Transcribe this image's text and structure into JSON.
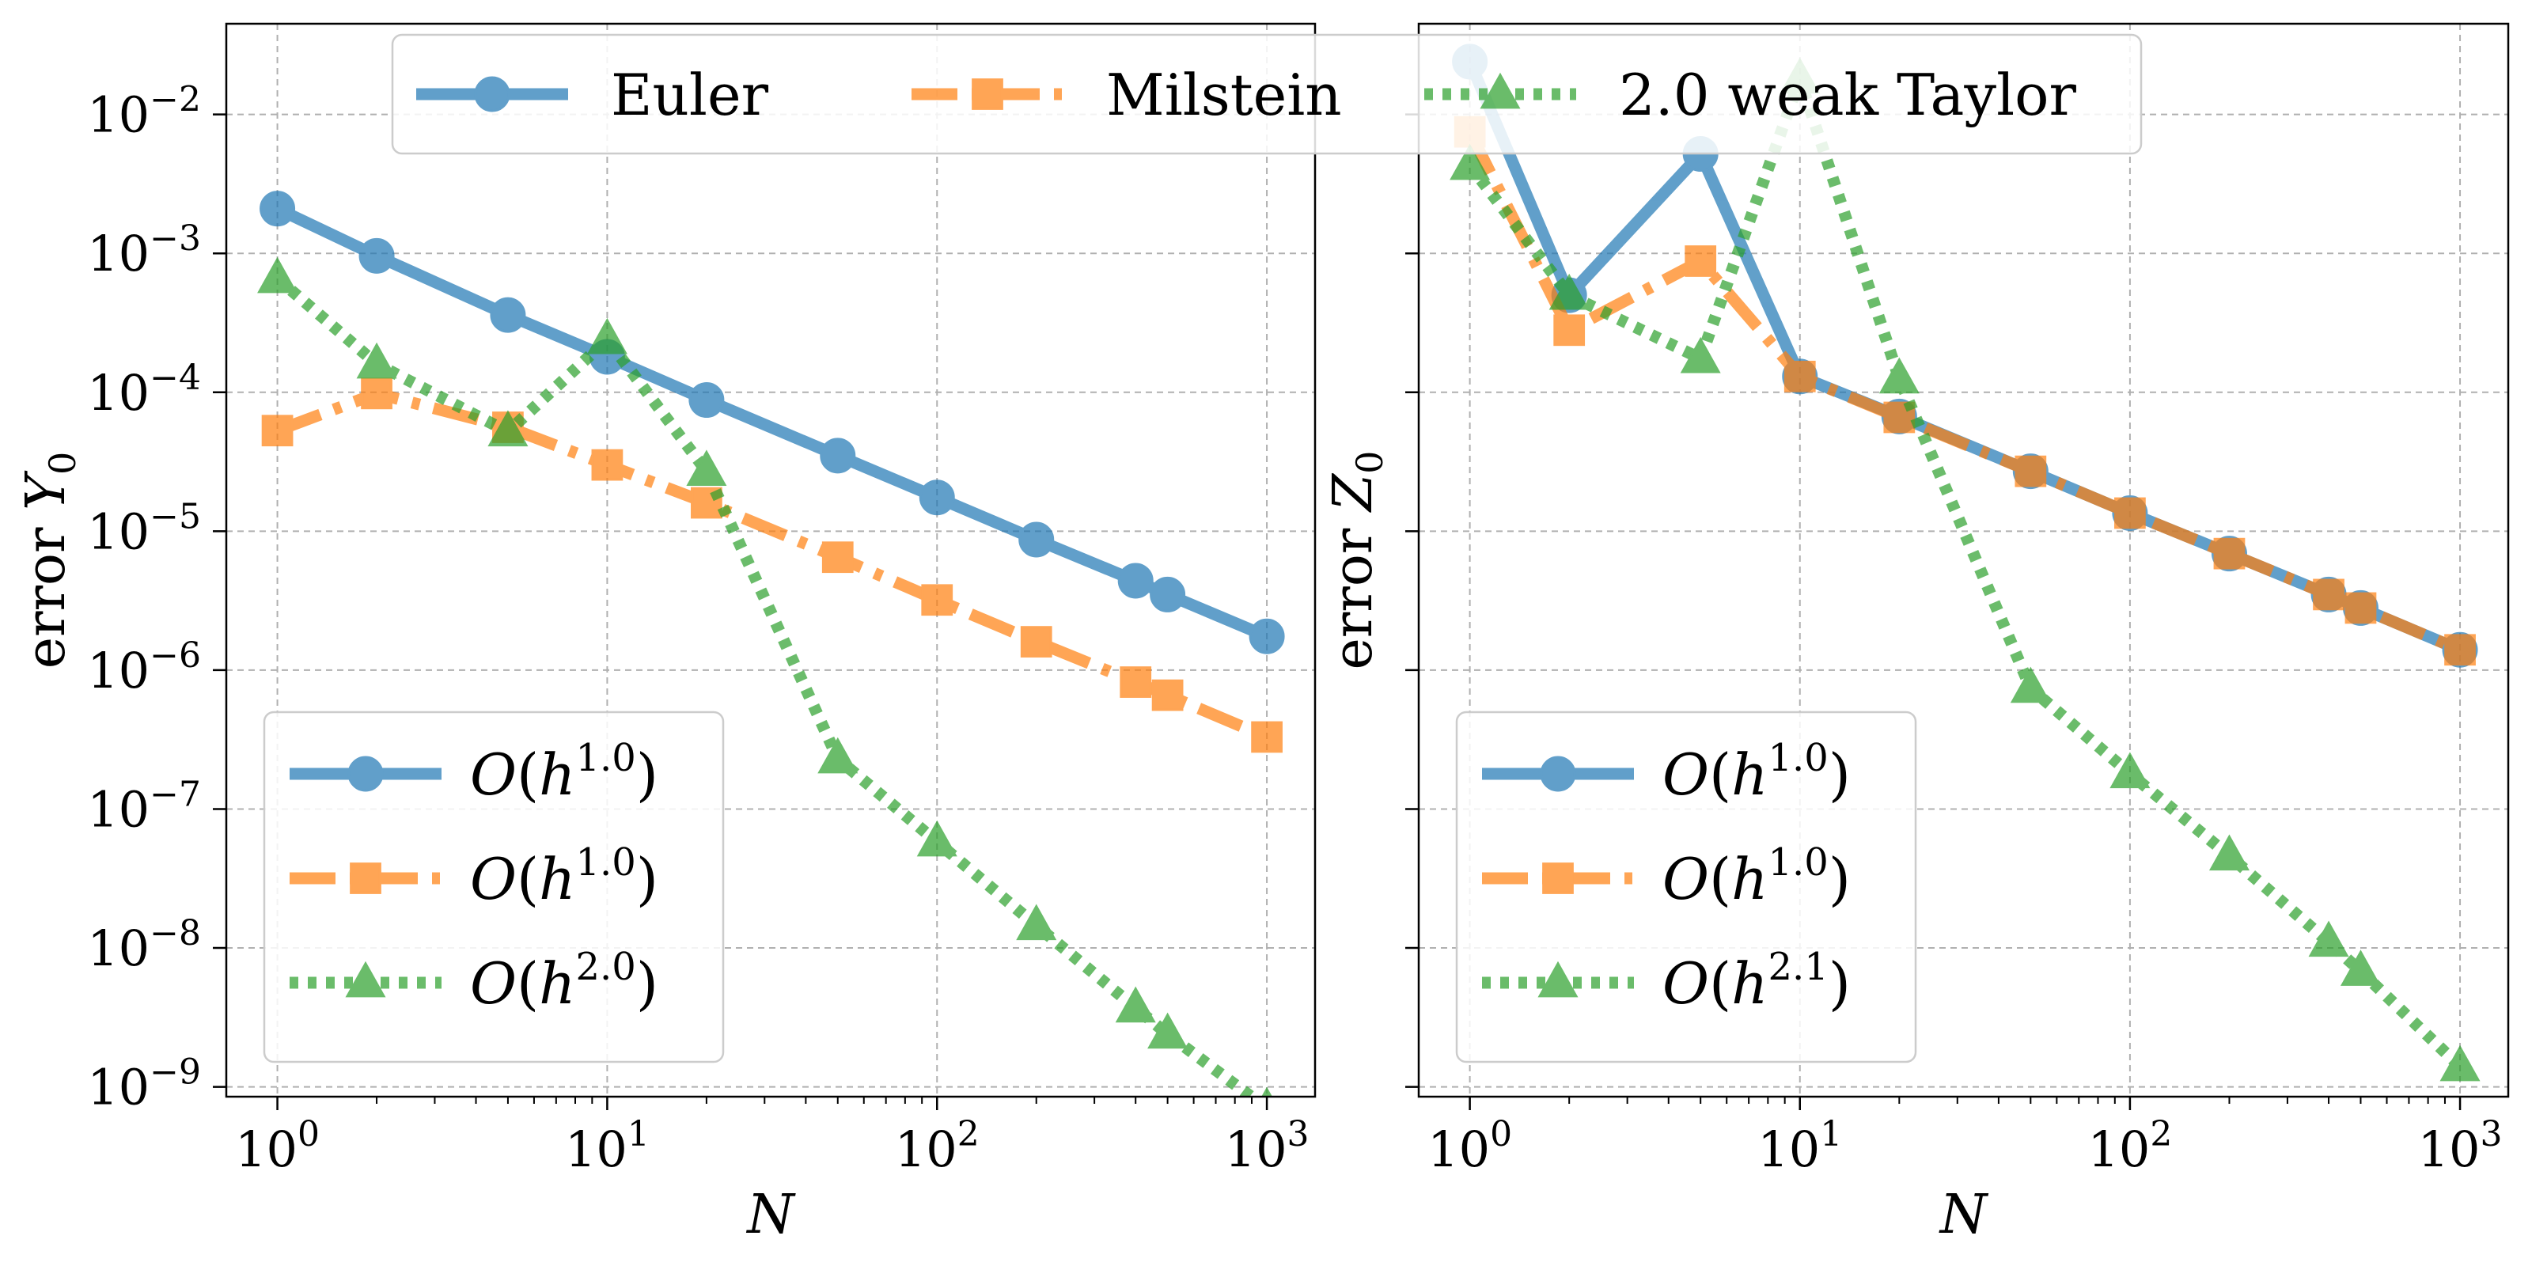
{
  "chart_data": {
    "type": "line",
    "scale": "log-log",
    "top_legend": {
      "entries": [
        {
          "label": "Euler",
          "series": "euler"
        },
        {
          "label": "Milstein",
          "series": "milstein"
        },
        {
          "label": "2.0 weak Taylor",
          "series": "taylor"
        }
      ]
    },
    "styles": {
      "euler": {
        "color": "#1f77b4",
        "marker": "circle",
        "dash": "solid"
      },
      "milstein": {
        "color": "#ff7f0e",
        "marker": "square",
        "dash": "dashdot"
      },
      "taylor": {
        "color": "#2ca02c",
        "marker": "triangle",
        "dash": "dotted"
      }
    },
    "panels": [
      {
        "id": "left",
        "xlabel": "N",
        "ylabel_prefix": "error",
        "ylabel_symbol": "Y",
        "ylabel_sub": "0",
        "xlim": [
          0.7,
          1400
        ],
        "ylim": [
          8.5e-10,
          0.045
        ],
        "xticks": [
          {
            "value": 1,
            "exp": "0"
          },
          {
            "value": 10,
            "exp": "1"
          },
          {
            "value": 100,
            "exp": "2"
          },
          {
            "value": 1000,
            "exp": "3"
          }
        ],
        "yticks": [
          {
            "value": 1e-09,
            "exp": "−9"
          },
          {
            "value": 1e-08,
            "exp": "−8"
          },
          {
            "value": 1e-07,
            "exp": "−7"
          },
          {
            "value": 1e-06,
            "exp": "−6"
          },
          {
            "value": 1e-05,
            "exp": "−5"
          },
          {
            "value": 0.0001,
            "exp": "−4"
          },
          {
            "value": 0.001,
            "exp": "−3"
          },
          {
            "value": 0.01,
            "exp": "−2"
          }
        ],
        "series": [
          {
            "key": "euler",
            "x": [
              1,
              2,
              5,
              10,
              20,
              50,
              100,
              200,
              400,
              500,
              1000
            ],
            "y": [
              0.0021,
              0.00096,
              0.00036,
              0.00018,
              8.8e-05,
              3.5e-05,
              1.75e-05,
              8.7e-06,
              4.4e-06,
              3.5e-06,
              1.75e-06
            ]
          },
          {
            "key": "milstein",
            "x": [
              1,
              2,
              5,
              10,
              20,
              50,
              100,
              200,
              400,
              500,
              1000
            ],
            "y": [
              5.3e-05,
              9.8e-05,
              5.6e-05,
              3e-05,
              1.6e-05,
              6.5e-06,
              3.2e-06,
              1.6e-06,
              8.2e-07,
              6.6e-07,
              3.3e-07
            ]
          },
          {
            "key": "taylor",
            "x": [
              1,
              2,
              5,
              10,
              20,
              50,
              100,
              200,
              400,
              500,
              1000
            ],
            "y": [
              0.00066,
              0.00016,
              5.2e-05,
              0.00024,
              2.7e-05,
              2.3e-07,
              5.8e-08,
              1.45e-08,
              3.7e-09,
              2.4e-09,
              7e-10
            ]
          }
        ],
        "legend": [
          {
            "series": "euler",
            "order": "1.0"
          },
          {
            "series": "milstein",
            "order": "1.0"
          },
          {
            "series": "taylor",
            "order": "2.0"
          }
        ]
      },
      {
        "id": "right",
        "xlabel": "N",
        "ylabel_prefix": "error",
        "ylabel_symbol": "Z",
        "ylabel_sub": "0",
        "xlim": [
          0.7,
          1400
        ],
        "ylim": [
          8.5e-10,
          0.045
        ],
        "xticks": [
          {
            "value": 1,
            "exp": "0"
          },
          {
            "value": 10,
            "exp": "1"
          },
          {
            "value": 100,
            "exp": "2"
          },
          {
            "value": 1000,
            "exp": "3"
          }
        ],
        "yticks": [],
        "series": [
          {
            "key": "euler",
            "x": [
              1,
              2,
              5,
              10,
              20,
              50,
              100,
              200,
              400,
              500,
              1000
            ],
            "y": [
              0.024,
              0.0005,
              0.0052,
              0.00013,
              6.7e-05,
              2.7e-05,
              1.35e-05,
              6.9e-06,
              3.5e-06,
              2.8e-06,
              1.4e-06
            ]
          },
          {
            "key": "milstein",
            "x": [
              1,
              2,
              5,
              10,
              20,
              50,
              100,
              200,
              400,
              500,
              1000
            ],
            "y": [
              0.0075,
              0.00028,
              0.00088,
              0.00013,
              6.6e-05,
              2.7e-05,
              1.35e-05,
              6.9e-06,
              3.5e-06,
              2.8e-06,
              1.4e-06
            ]
          },
          {
            "key": "taylor",
            "x": [
              1,
              2,
              5,
              10,
              20,
              50,
              100,
              200,
              400,
              500,
              1000
            ],
            "y": [
              0.0043,
              0.0005,
              0.000175,
              0.018,
              0.000125,
              7.4e-07,
              1.8e-07,
              4.6e-08,
              1.1e-08,
              6.8e-09,
              1.4e-09
            ]
          }
        ],
        "legend": [
          {
            "series": "euler",
            "order": "1.0"
          },
          {
            "series": "milstein",
            "order": "1.0"
          },
          {
            "series": "taylor",
            "order": "2.1"
          }
        ]
      }
    ]
  }
}
